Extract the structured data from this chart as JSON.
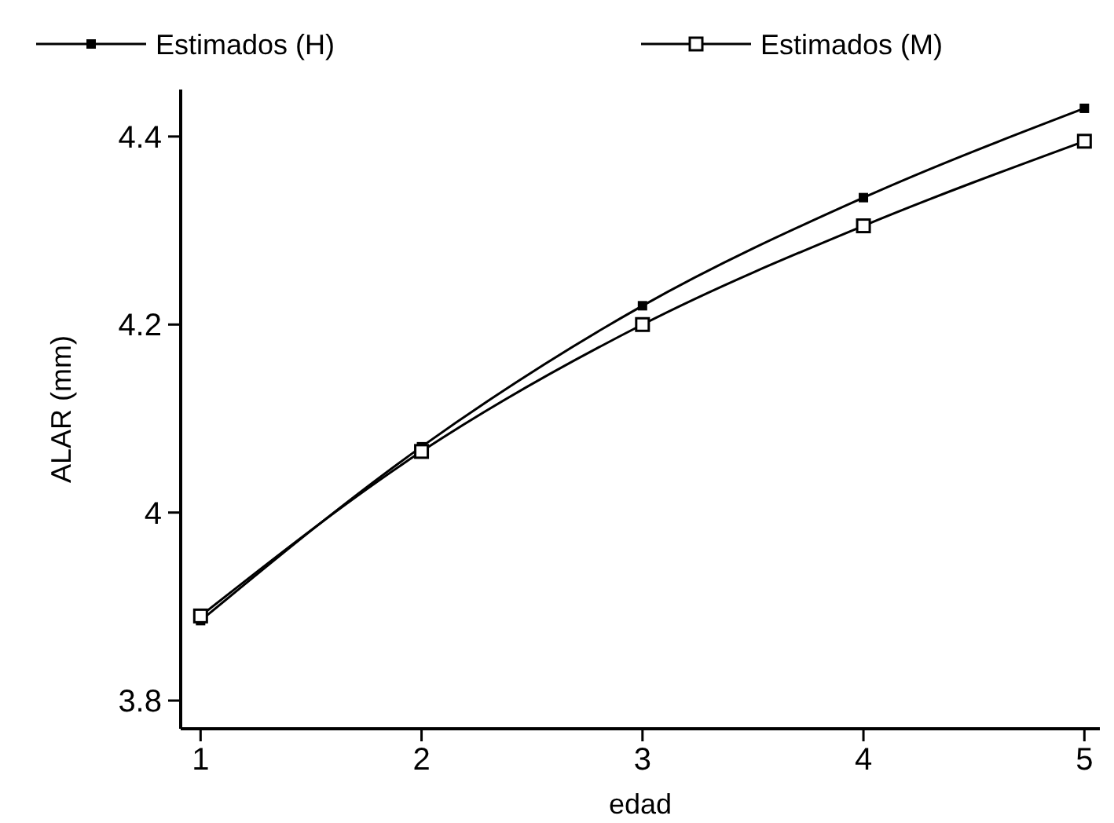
{
  "chart_data": {
    "type": "line",
    "xlabel": "edad",
    "ylabel": "ALAR (mm)",
    "x": [
      1,
      2,
      3,
      4,
      5
    ],
    "series": [
      {
        "name": "Estimados (H)",
        "color": "#000000",
        "marker": "square",
        "values": [
          3.885,
          4.07,
          4.22,
          4.335,
          4.43
        ]
      },
      {
        "name": "Estimados (M)",
        "color": "#000000",
        "marker": "square_open",
        "values": [
          3.89,
          4.065,
          4.2,
          4.305,
          4.395
        ]
      }
    ],
    "xlim": [
      0.91,
      5.07
    ],
    "ylim": [
      3.77,
      4.45
    ],
    "xticks": [
      1,
      2,
      3,
      4,
      5
    ],
    "yticks": [
      3.8,
      4.2,
      4.4,
      {
        "value": 4,
        "label": "4"
      }
    ],
    "legend": "top",
    "grid": false
  }
}
